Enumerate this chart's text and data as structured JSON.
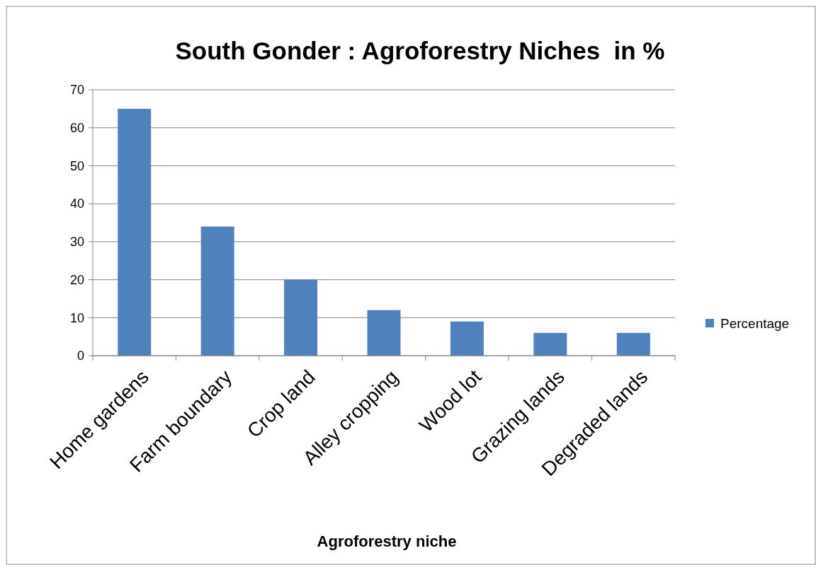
{
  "chart_data": {
    "type": "bar",
    "title": "South Gonder : Agroforestry Niches  in %",
    "xlabel": "Agroforestry niche",
    "categories": [
      "Home gardens",
      "Farm boundary",
      "Crop land",
      "Alley cropping",
      "Wood lot",
      "Grazing lands",
      "Degraded lands"
    ],
    "series": [
      {
        "name": "Percentage",
        "color": "#4f81bd",
        "values": [
          65,
          34,
          20,
          12,
          9,
          6,
          6
        ]
      }
    ],
    "ylim": [
      0,
      70
    ],
    "yticks": [
      0,
      10,
      20,
      30,
      40,
      50,
      60,
      70
    ],
    "grid": "y",
    "legend": "right"
  }
}
